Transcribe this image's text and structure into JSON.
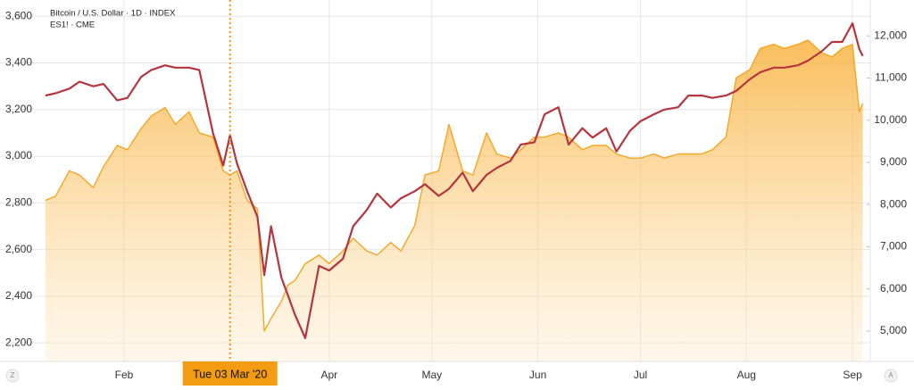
{
  "chart_data": {
    "type": "line",
    "x": [
      8,
      11,
      15,
      18,
      22,
      25,
      29,
      32,
      36,
      39,
      43,
      46,
      50,
      53,
      57,
      60,
      62,
      64,
      67,
      70,
      72,
      74,
      77,
      79,
      81,
      84,
      88,
      91,
      95,
      98,
      102,
      105,
      109,
      112,
      116,
      119,
      123,
      126,
      130,
      133,
      137,
      140,
      144,
      147,
      151,
      154,
      158,
      161,
      165,
      168,
      172,
      175,
      179,
      182,
      186,
      189,
      193,
      196,
      200,
      203,
      207,
      210,
      214,
      217,
      221,
      224,
      228,
      231,
      235,
      238,
      241,
      244,
      246,
      247
    ],
    "xlim": [
      7,
      249.2
    ],
    "xticks": [
      {
        "value": 31,
        "label": "Feb"
      },
      {
        "value": 91,
        "label": "Apr"
      },
      {
        "value": 121,
        "label": "May"
      },
      {
        "value": 152,
        "label": "Jun"
      },
      {
        "value": 182,
        "label": "Jul"
      },
      {
        "value": 213,
        "label": "Aug"
      },
      {
        "value": 244,
        "label": "Sep"
      }
    ],
    "ylim": [
      2120,
      3670
    ],
    "yticks": [
      {
        "value": 2200,
        "label": "2,200"
      },
      {
        "value": 2400,
        "label": "2,400"
      },
      {
        "value": 2600,
        "label": "2,600"
      },
      {
        "value": 2800,
        "label": "2,800"
      },
      {
        "value": 3000,
        "label": "3,000"
      },
      {
        "value": 3200,
        "label": "3,200"
      },
      {
        "value": 3400,
        "label": "3,400"
      },
      {
        "value": 3600,
        "label": "3,600"
      }
    ],
    "y2lim": [
      4280,
      12850
    ],
    "y2ticks": [
      {
        "value": 5000,
        "label": "5,000"
      },
      {
        "value": 6000,
        "label": "6,000"
      },
      {
        "value": 7000,
        "label": "7,000"
      },
      {
        "value": 8000,
        "label": "8,000"
      },
      {
        "value": 9000,
        "label": "9,000"
      },
      {
        "value": 10000,
        "label": "10,000"
      },
      {
        "value": 11000,
        "label": "11,000"
      },
      {
        "value": 12000,
        "label": "12,000"
      }
    ],
    "grid": true,
    "series": [
      {
        "name": "Bitcoin / U.S. Dollar · 1D · INDEX",
        "color": "#f5a623",
        "axis": "y2",
        "area": true,
        "values": [
          8100,
          8200,
          8800,
          8700,
          8400,
          8900,
          9400,
          9300,
          9800,
          10100,
          10300,
          9900,
          10200,
          9700,
          9600,
          8800,
          8700,
          8800,
          8100,
          7900,
          5000,
          5300,
          5700,
          6100,
          6200,
          6600,
          6800,
          6600,
          6900,
          7200,
          6900,
          6800,
          7100,
          6900,
          7500,
          8700,
          8800,
          9900,
          8800,
          8700,
          9700,
          9200,
          9100,
          9300,
          9600,
          9600,
          9700,
          9600,
          9300,
          9400,
          9400,
          9200,
          9100,
          9100,
          9200,
          9100,
          9200,
          9200,
          9200,
          9300,
          9600,
          11000,
          11200,
          11700,
          11800,
          11700,
          11800,
          11900,
          11600,
          11500,
          11700,
          11800,
          10200,
          10400
        ]
      },
      {
        "name": "ES1! · CME",
        "color": "#b5353e",
        "values": [
          3260,
          3270,
          3290,
          3320,
          3300,
          3310,
          3240,
          3250,
          3340,
          3370,
          3390,
          3380,
          3380,
          3370,
          3100,
          2960,
          3090,
          2970,
          2850,
          2740,
          2490,
          2700,
          2480,
          2400,
          2320,
          2220,
          2530,
          2510,
          2560,
          2700,
          2770,
          2840,
          2780,
          2820,
          2850,
          2880,
          2830,
          2860,
          2930,
          2850,
          2920,
          2950,
          2980,
          3050,
          3060,
          3180,
          3210,
          3050,
          3120,
          3080,
          3120,
          3020,
          3110,
          3150,
          3180,
          3200,
          3210,
          3260,
          3260,
          3250,
          3260,
          3280,
          3330,
          3360,
          3380,
          3380,
          3390,
          3410,
          3450,
          3490,
          3490,
          3570,
          3460,
          3430
        ]
      }
    ],
    "crosshair": {
      "x": 62,
      "label": "Tue 03 Mar '20"
    },
    "axis_buttons": [
      "Z",
      "A"
    ]
  }
}
